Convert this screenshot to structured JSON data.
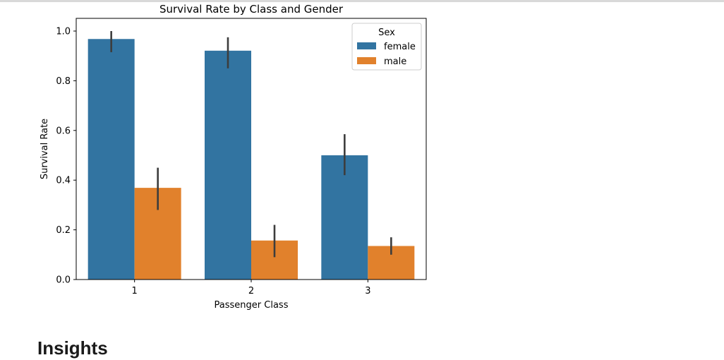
{
  "chart_data": {
    "type": "bar",
    "title": "Survival Rate by Class and Gender",
    "xlabel": "Passenger Class",
    "ylabel": "Survival Rate",
    "categories": [
      "1",
      "2",
      "3"
    ],
    "ylim": [
      0,
      1.05
    ],
    "yticks": [
      "0.0",
      "0.2",
      "0.4",
      "0.6",
      "0.8",
      "1.0"
    ],
    "grid": false,
    "legend": {
      "title": "Sex",
      "position": "top-right"
    },
    "series": [
      {
        "name": "female",
        "color": "#3274a1",
        "values": [
          0.968,
          0.921,
          0.5
        ],
        "error_low": [
          0.915,
          0.85,
          0.42
        ],
        "error_high": [
          1.0,
          0.975,
          0.585
        ]
      },
      {
        "name": "male",
        "color": "#e1812c",
        "values": [
          0.369,
          0.157,
          0.135
        ],
        "error_low": [
          0.28,
          0.09,
          0.1
        ],
        "error_high": [
          0.45,
          0.22,
          0.17
        ]
      }
    ]
  },
  "section": {
    "heading": "Insights"
  }
}
